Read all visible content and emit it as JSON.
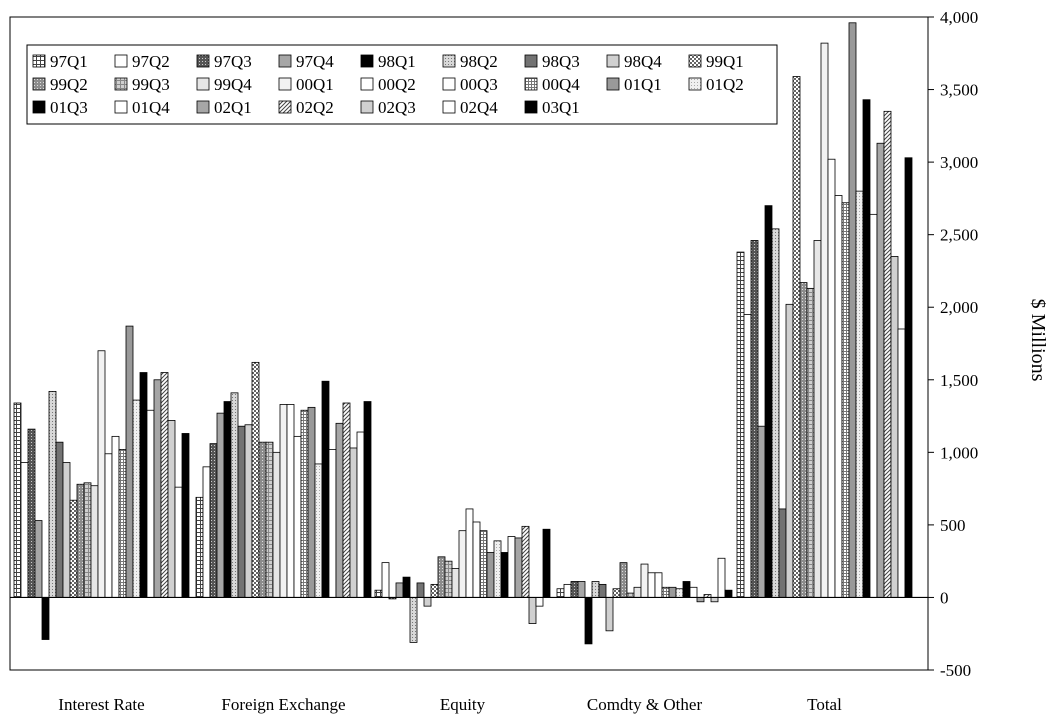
{
  "chart_data": {
    "type": "bar",
    "categories": [
      "Interest Rate",
      "Foreign Exchange",
      "Equity",
      "Comdty & Other",
      "Total"
    ],
    "ylabel": "$ Millions",
    "ylim": [
      -500,
      4000
    ],
    "ytick_labels": [
      "-500",
      "0",
      "500",
      "1,000",
      "1,500",
      "2,000",
      "2,500",
      "3,000",
      "3,500",
      "4,000"
    ],
    "yticks": [
      -500,
      0,
      500,
      1000,
      1500,
      2000,
      2500,
      3000,
      3500,
      4000
    ],
    "y_axis_side": "right",
    "legend_position": "top-left",
    "grid": false,
    "series": [
      {
        "name": "97Q1",
        "pattern": "grid",
        "values": [
          1340,
          690,
          50,
          60,
          2380
        ]
      },
      {
        "name": "97Q2",
        "pattern": "white",
        "values": [
          930,
          900,
          240,
          90,
          1950
        ]
      },
      {
        "name": "97Q3",
        "pattern": "dense",
        "values": [
          1160,
          1060,
          -10,
          110,
          2460
        ]
      },
      {
        "name": "97Q4",
        "pattern": "gray",
        "values": [
          530,
          1270,
          100,
          110,
          1180
        ]
      },
      {
        "name": "98Q1",
        "pattern": "black",
        "values": [
          -290,
          1350,
          140,
          -320,
          2700
        ]
      },
      {
        "name": "98Q2",
        "pattern": "light-dots",
        "values": [
          1420,
          1410,
          -310,
          110,
          2540
        ]
      },
      {
        "name": "98Q3",
        "pattern": "dark-gray",
        "values": [
          1070,
          1180,
          100,
          90,
          610
        ]
      },
      {
        "name": "98Q4",
        "pattern": "light-gray",
        "values": [
          930,
          1190,
          -60,
          -230,
          2020
        ]
      },
      {
        "name": "99Q1",
        "pattern": "checker",
        "values": [
          670,
          1620,
          90,
          60,
          3590
        ]
      },
      {
        "name": "99Q2",
        "pattern": "gray-dots",
        "values": [
          780,
          1070,
          280,
          240,
          2170
        ]
      },
      {
        "name": "99Q3",
        "pattern": "gray-grid",
        "values": [
          790,
          1070,
          250,
          30,
          2130
        ]
      },
      {
        "name": "99Q4",
        "pattern": "very-light",
        "values": [
          770,
          1000,
          200,
          70,
          2460
        ]
      },
      {
        "name": "00Q1",
        "pattern": "pale",
        "values": [
          1700,
          1330,
          460,
          230,
          3820
        ]
      },
      {
        "name": "00Q2",
        "pattern": "white",
        "values": [
          990,
          1330,
          610,
          170,
          3020
        ]
      },
      {
        "name": "00Q3",
        "pattern": "white",
        "values": [
          1110,
          1110,
          520,
          170,
          2770
        ]
      },
      {
        "name": "00Q4",
        "pattern": "fine-grid",
        "values": [
          1020,
          1290,
          460,
          70,
          2720
        ]
      },
      {
        "name": "01Q1",
        "pattern": "mid-gray",
        "values": [
          1870,
          1310,
          310,
          70,
          3960
        ]
      },
      {
        "name": "01Q2",
        "pattern": "pale-dots",
        "values": [
          1360,
          920,
          390,
          60,
          2800
        ]
      },
      {
        "name": "01Q3",
        "pattern": "black",
        "values": [
          1550,
          1490,
          310,
          110,
          3430
        ]
      },
      {
        "name": "01Q4",
        "pattern": "white",
        "values": [
          1290,
          1020,
          420,
          70,
          2640
        ]
      },
      {
        "name": "02Q1",
        "pattern": "gray",
        "values": [
          1500,
          1200,
          410,
          -30,
          3130
        ]
      },
      {
        "name": "02Q2",
        "pattern": "hatch",
        "values": [
          1550,
          1340,
          490,
          20,
          3350
        ]
      },
      {
        "name": "02Q3",
        "pattern": "light-gray",
        "values": [
          1220,
          1030,
          -180,
          -30,
          2350
        ]
      },
      {
        "name": "02Q4",
        "pattern": "white",
        "values": [
          760,
          1140,
          -60,
          270,
          1850
        ]
      },
      {
        "name": "03Q1",
        "pattern": "black",
        "values": [
          1130,
          1350,
          470,
          50,
          3030
        ]
      }
    ]
  }
}
